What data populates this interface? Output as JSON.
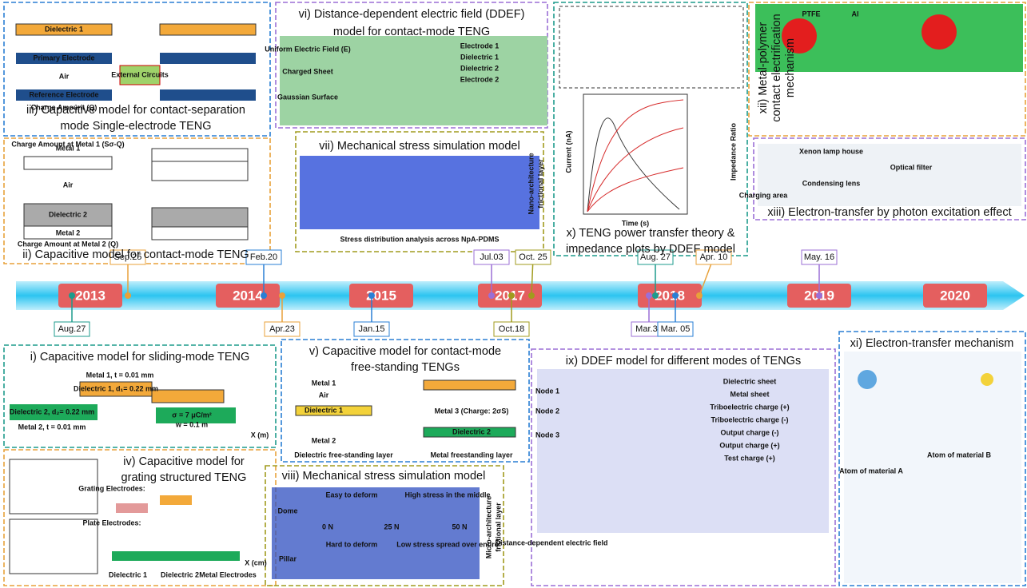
{
  "timeline": {
    "years": [
      "2013",
      "2014",
      "2015",
      "2017",
      "2018",
      "2019",
      "2020"
    ],
    "dates_above": [
      "Sep.25",
      "Feb.20",
      "Jul.03",
      "Oct. 25",
      "Aug. 27",
      "Apr. 10",
      "May. 16"
    ],
    "dates_below": [
      "Aug.27",
      "Apr.23",
      "Jan.15",
      "Oct.18",
      "Mar.30",
      "Mar. 05"
    ]
  },
  "panels": [
    {
      "title": [
        "iii) Capacitive model for contact-separation",
        "mode Single-electrode TENG"
      ],
      "labels": [
        "Dielectric 1",
        "Primary Electrode",
        "Air",
        "Reference Electrode",
        "External Circuits",
        "Charge Amount (Q)"
      ]
    },
    {
      "title": [
        "ii) Capacitive model for contact-mode TENG"
      ],
      "labels": [
        "Metal 1",
        "Air",
        "Dielectric 2",
        "Metal 2",
        "Charge Amount at Metal 1 (Sσ-Q)",
        "Charge Amount at Metal 2 (Q)"
      ]
    },
    {
      "title": [
        "vi) Distance-dependent electric field (DDEF)",
        "model for contact-mode TENG"
      ],
      "labels": [
        "Uniform Electric Field (E)",
        "Charged Sheet",
        "Gaussian Surface",
        "Electrode 1",
        "Dielectric 1",
        "Dielectric 2",
        "Electrode 2"
      ]
    },
    {
      "title": [
        "vii) Mechanical stress simulation model"
      ],
      "labels": [
        "Stress distribution analysis across NpA-PDMS",
        "Nano-architecture",
        "frictional layer"
      ]
    },
    {
      "title": [
        "x) TENG power transfer theory &",
        "impedance plots by DDEF model"
      ],
      "labels": [
        "Current (nA)",
        "Time (s)",
        "Impedance Ratio"
      ]
    },
    {
      "title": [
        "xii) Metal-polymer",
        "contact electrification",
        "mechanism"
      ],
      "labels": [
        "PTFE",
        "Al"
      ]
    },
    {
      "title": [
        "xiii) Electron-transfer by photon excitation effect"
      ],
      "labels": [
        "Xenon lamp house",
        "Optical filter",
        "Condensing lens",
        "Charging area"
      ]
    },
    {
      "title": [
        "i) Capacitive model for sliding-mode TENG"
      ],
      "labels": [
        "Metal 1, t = 0.01 mm",
        "Dielectric 1, d₁= 0.22 mm",
        "Dielectric 2, d₂= 0.22 mm",
        "Metal 2, t = 0.01 mm",
        "σ = 7 μC/m²",
        "w = 0.1 m",
        "X (m)"
      ]
    },
    {
      "title": [
        "iv) Capacitive model for",
        "grating structured TENG"
      ],
      "labels": [
        "Grating Electrodes:",
        "Plate Electrodes:",
        "Dielectric 1",
        "Dielectric 2",
        "Metal Electrodes",
        "X (cm)"
      ]
    },
    {
      "title": [
        "v) Capacitive model for contact-mode",
        "free-standing TENGs"
      ],
      "labels": [
        "Dielectric free-standing layer",
        "Metal freestanding layer",
        "Metal 1",
        "Metal 2",
        "Air",
        "Dielectric 1",
        "Metal 3 (Charge: 2σS)",
        "Dielectric 2"
      ]
    },
    {
      "title": [
        "viii) Mechanical stress simulation model"
      ],
      "labels": [
        "Dome",
        "Pillar",
        "Easy to deform",
        "Hard to deform",
        "High stress in the middle",
        "Low stress spread over entire",
        "0 N",
        "25 N",
        "50 N",
        "Micro-architecture",
        "frictional layer"
      ]
    },
    {
      "title": [
        "ix) DDEF model for different modes of TENGs"
      ],
      "labels": [
        "Distance-dependent electric field",
        "Dielectric sheet",
        "Metal sheet",
        "Triboelectric charge (+)",
        "Triboelectric charge (-)",
        "Output charge (-)",
        "Output charge (+)",
        "Test charge (+)",
        "Node 1",
        "Node 2",
        "Node 3"
      ]
    },
    {
      "title": [
        "xi) Electron-transfer mechanism"
      ],
      "labels": [
        "Atom of material A",
        "Atom of material B"
      ]
    }
  ]
}
